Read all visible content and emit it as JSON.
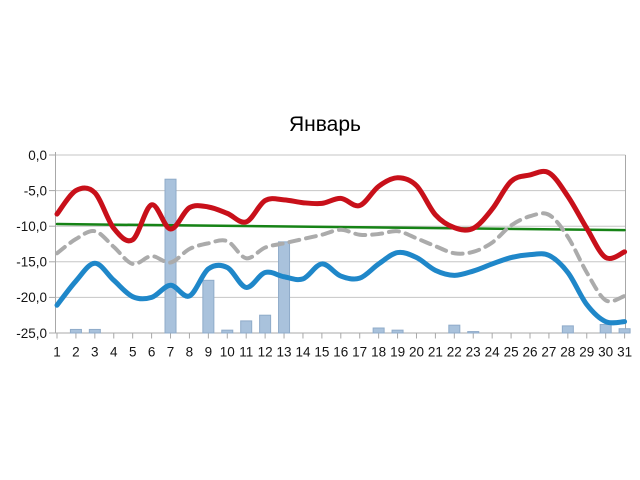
{
  "page": {
    "background_color": "#ffffff"
  },
  "chart_data": {
    "type": "line+bar",
    "title": "Январь",
    "xlabel": "",
    "ylabel": "",
    "ylim": [
      -25,
      0
    ],
    "grid": "horizontal",
    "legend_position": "none",
    "x_tick_labels": [
      "1",
      "2",
      "3",
      "4",
      "5",
      "6",
      "7",
      "8",
      "9",
      "10",
      "11",
      "12",
      "13",
      "14",
      "15",
      "16",
      "17",
      "18",
      "19",
      "20",
      "21",
      "22",
      "23",
      "24",
      "25",
      "26",
      "27",
      "28",
      "29",
      "30",
      "31"
    ],
    "y_tick_values": [
      0,
      -5,
      -10,
      -15,
      -20,
      -25
    ],
    "y_tick_labels": [
      "0,0",
      "-5,0",
      "-10,0",
      "-15,0",
      "-20,0",
      "-25,0"
    ],
    "axis_color": "#a8a8a8",
    "gridline_color": "#c6c6c6",
    "series": [
      {
        "name": "bars",
        "type": "bar",
        "color": "#a9c2dc",
        "border_color": "#8fabc9",
        "baseline": -25,
        "values": [
          null,
          -24.5,
          -24.5,
          null,
          null,
          null,
          -3.4,
          null,
          -17.6,
          -24.6,
          -23.3,
          -22.5,
          -12.2,
          null,
          null,
          null,
          null,
          -24.3,
          -24.6,
          null,
          null,
          -23.9,
          -24.8,
          null,
          null,
          null,
          null,
          -24.0,
          null,
          -23.8,
          -24.4
        ]
      },
      {
        "name": "green-trend-line",
        "type": "line",
        "line_style": "solid",
        "color": "#168316",
        "width": 2.5,
        "x": [
          1,
          31
        ],
        "values": [
          -9.7,
          -10.55
        ]
      },
      {
        "name": "gray-dashed-line",
        "type": "line",
        "line_style": "dashed",
        "color": "#ababab",
        "width": 4,
        "values": [
          -13.8,
          -11.8,
          -10.7,
          -12.9,
          -15.3,
          -14.2,
          -15.1,
          -13.2,
          -12.4,
          -12.1,
          -14.5,
          -13.0,
          -12.4,
          -11.8,
          -11.2,
          -10.5,
          -11.2,
          -11.1,
          -10.7,
          -11.7,
          -12.8,
          -13.8,
          -13.6,
          -12.3,
          -9.9,
          -8.6,
          -8.4,
          -11.5,
          -16.5,
          -20.4,
          -19.8
        ]
      },
      {
        "name": "red-line",
        "type": "line",
        "line_style": "solid",
        "color": "#c8101a",
        "width": 5,
        "values": [
          -8.3,
          -5.0,
          -5.3,
          -10.3,
          -11.9,
          -7.0,
          -10.4,
          -7.4,
          -7.3,
          -8.2,
          -9.4,
          -6.4,
          -6.3,
          -6.7,
          -6.8,
          -6.1,
          -7.1,
          -4.4,
          -3.2,
          -4.3,
          -8.4,
          -10.2,
          -10.3,
          -7.6,
          -3.7,
          -2.8,
          -2.5,
          -5.8,
          -10.3,
          -14.4,
          -13.6
        ]
      },
      {
        "name": "blue-line",
        "type": "line",
        "line_style": "solid",
        "color": "#1f87c9",
        "width": 5,
        "values": [
          -21.1,
          -17.7,
          -15.2,
          -17.6,
          -19.9,
          -20.0,
          -18.3,
          -19.8,
          -16.0,
          -15.8,
          -18.6,
          -16.5,
          -17.1,
          -17.4,
          -15.3,
          -17.0,
          -17.3,
          -15.3,
          -13.7,
          -14.4,
          -16.2,
          -16.9,
          -16.3,
          -15.3,
          -14.4,
          -14.0,
          -14.1,
          -16.5,
          -21.0,
          -23.4,
          -23.4
        ]
      }
    ]
  }
}
